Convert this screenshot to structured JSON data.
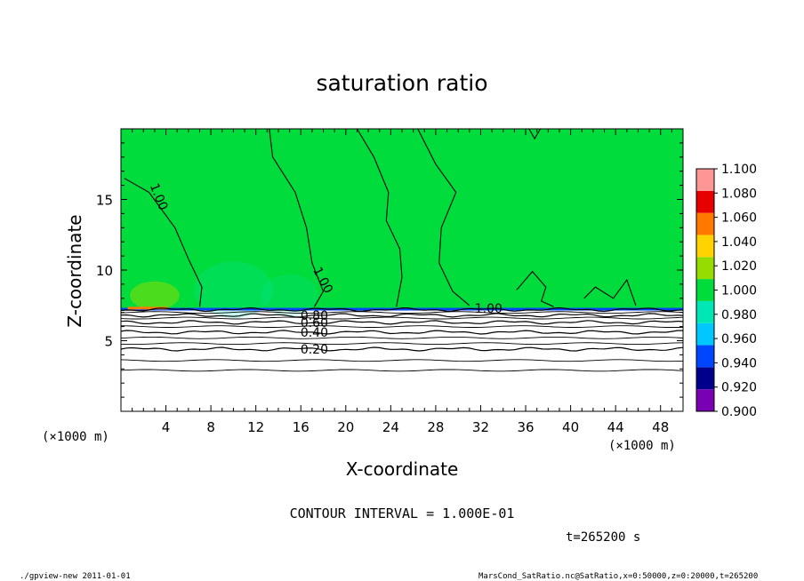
{
  "chart_data": {
    "type": "heatmap",
    "title": "saturation ratio",
    "xlabel": "X-coordinate",
    "ylabel": "Z-coordinate",
    "x_units_left": "(×1000 m)",
    "x_units_right": "(×1000 m)",
    "xlim": [
      0,
      50
    ],
    "ylim": [
      0,
      20
    ],
    "xticks": [
      4,
      8,
      12,
      16,
      20,
      24,
      28,
      32,
      36,
      40,
      44,
      48
    ],
    "yticks": [
      5,
      10,
      15
    ],
    "colorbar": {
      "levels": [
        0.9,
        0.92,
        0.94,
        0.96,
        0.98,
        1.0,
        1.02,
        1.04,
        1.06,
        1.08,
        1.1
      ],
      "labels": [
        "0.900",
        "0.920",
        "0.940",
        "0.960",
        "0.980",
        "1.000",
        "1.020",
        "1.040",
        "1.060",
        "1.080",
        "1.100"
      ],
      "colors": [
        "#7a00b4",
        "#00008c",
        "#0046ff",
        "#00c8ff",
        "#00e6b4",
        "#00dc3c",
        "#96dc00",
        "#ffd200",
        "#ff7800",
        "#e60000",
        "#ff9696"
      ]
    },
    "contours": [
      {
        "level": 0.2,
        "label": "0.20",
        "z": 4.4
      },
      {
        "level": 0.4,
        "label": "0.40",
        "z": 5.6
      },
      {
        "level": 0.6,
        "label": "0.60",
        "z": 6.3
      },
      {
        "level": 0.8,
        "label": "0.80",
        "z": 6.8
      },
      {
        "level": 1.0,
        "label": "1.00",
        "z": 7.2
      }
    ],
    "contour_labels_extra": [
      "1.00",
      "1.00",
      "1.00"
    ],
    "background_value": 1.0,
    "cloud_top_z": 7.2,
    "contour_interval_text": "CONTOUR INTERVAL = 1.000E-01"
  },
  "time_label": "t=265200 s",
  "footer_left": "./gpview-new  2011-01-01",
  "footer_right": "MarsCond_SatRatio.nc@SatRatio,x=0:50000,z=0:20000,t=265200"
}
